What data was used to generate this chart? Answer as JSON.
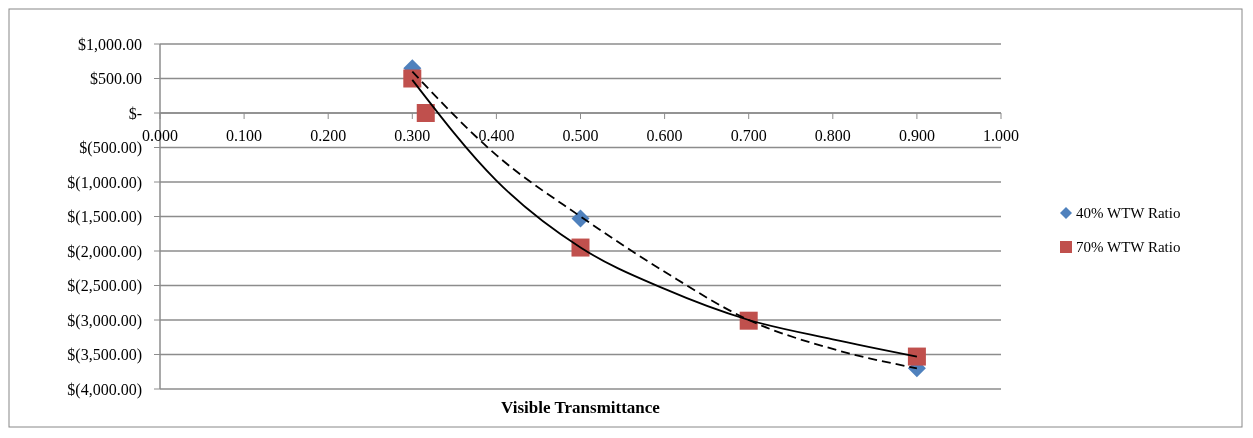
{
  "chart_data": {
    "type": "scatter",
    "xlabel": "Visible Transmittance",
    "xlim": [
      0,
      1
    ],
    "ylim": [
      -4000,
      1000
    ],
    "xticks": [
      {
        "value": 0,
        "label": "0.000"
      },
      {
        "value": 0.1,
        "label": "0.100"
      },
      {
        "value": 0.2,
        "label": "0.200"
      },
      {
        "value": 0.3,
        "label": "0.300"
      },
      {
        "value": 0.4,
        "label": "0.400"
      },
      {
        "value": 0.5,
        "label": "0.500"
      },
      {
        "value": 0.6,
        "label": "0.600"
      },
      {
        "value": 0.7,
        "label": "0.700"
      },
      {
        "value": 0.8,
        "label": "0.800"
      },
      {
        "value": 0.9,
        "label": "0.900"
      },
      {
        "value": 1,
        "label": "1.000"
      }
    ],
    "yticks": [
      {
        "value": 1000,
        "label": "$1,000.00"
      },
      {
        "value": 500,
        "label": "$500.00"
      },
      {
        "value": 0,
        "label": "$-"
      },
      {
        "value": -500,
        "label": "$(500.00)"
      },
      {
        "value": -1000,
        "label": "$(1,000.00)"
      },
      {
        "value": -1500,
        "label": "$(1,500.00)"
      },
      {
        "value": -2000,
        "label": "$(2,000.00)"
      },
      {
        "value": -2500,
        "label": "$(2,500.00)"
      },
      {
        "value": -3000,
        "label": "$(3,000.00)"
      },
      {
        "value": -3500,
        "label": "$(3,500.00)"
      },
      {
        "value": -4000,
        "label": "$(4,000.00)"
      }
    ],
    "grid": "y",
    "legend": "right",
    "series": [
      {
        "name": "40% WTW Ratio",
        "marker": "diamond",
        "color": "#4f81bd",
        "x": [
          0.3,
          0.5,
          0.9
        ],
        "values": [
          650,
          -1530,
          -3700
        ]
      },
      {
        "name": "70% WTW Ratio",
        "marker": "square",
        "color": "#c0504d",
        "x": [
          0.3,
          0.316,
          0.5,
          0.7,
          0.9
        ],
        "values": [
          500,
          0,
          -1950,
          -3010,
          -3530
        ]
      },
      {
        "type": "line",
        "marker": "none",
        "line_style": "dashed",
        "color": "#000000",
        "x": [
          0.3,
          0.4,
          0.5,
          0.6,
          0.7,
          0.8,
          0.9
        ],
        "values": [
          600,
          -610,
          -1500,
          -2300,
          -3000,
          -3420,
          -3700
        ]
      },
      {
        "type": "line",
        "marker": "none",
        "line_style": "solid",
        "color": "#000000",
        "x": [
          0.3,
          0.4,
          0.5,
          0.6,
          0.7,
          0.8,
          0.9
        ],
        "values": [
          480,
          -980,
          -1950,
          -2550,
          -3000,
          -3280,
          -3530
        ]
      }
    ]
  }
}
